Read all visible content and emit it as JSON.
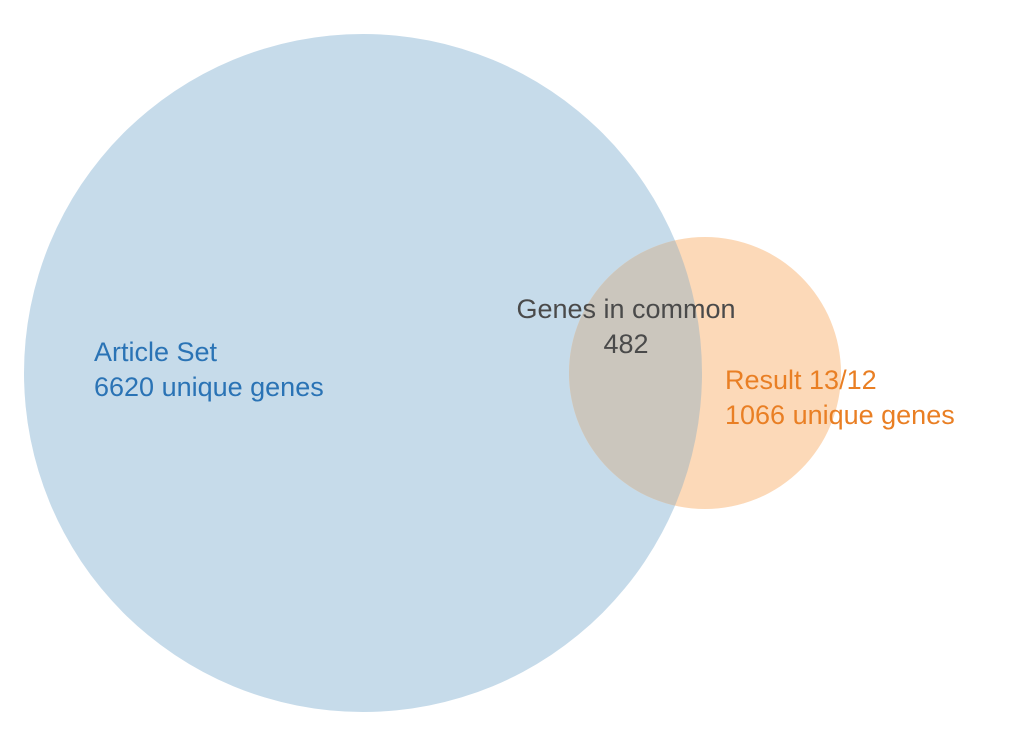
{
  "venn": {
    "set_a": {
      "name": "Article Set",
      "count_text": "6620 unique genes",
      "unique_count": 6620,
      "color": "#c6dbea",
      "text_color": "#2a73b5"
    },
    "set_b": {
      "name": "Result 13/12",
      "count_text": "1066 unique genes",
      "unique_count": 1066,
      "color": "#fcd9b8",
      "text_color": "#e97f24"
    },
    "overlap": {
      "label": "Genes in common",
      "count_text": "482",
      "count": 482,
      "color": "#cbc6bd",
      "text_color": "#4a4a4a"
    }
  }
}
